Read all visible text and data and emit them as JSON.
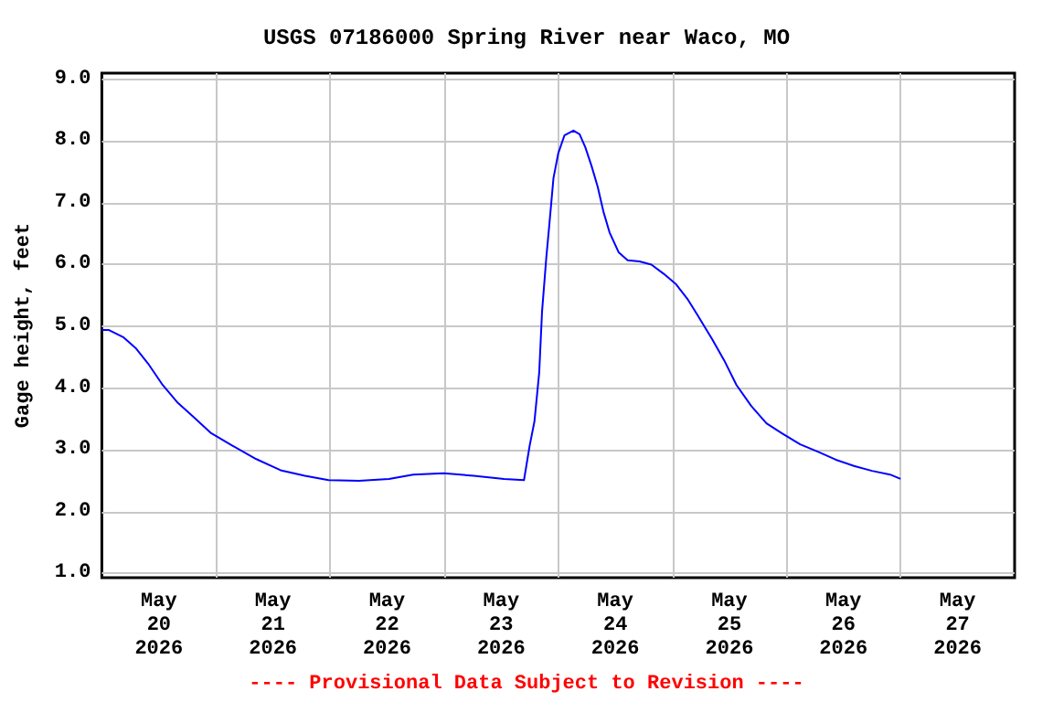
{
  "chart_data": {
    "type": "line",
    "title": "USGS 07186000 Spring River near Waco, MO",
    "ylabel": "Gage height, feet",
    "annotations": [
      "---- Provisional Data Subject to Revision ----"
    ],
    "x": [
      "2026-05-20T00:00",
      "2026-05-20T01:30",
      "2026-05-20T04:36",
      "2026-05-20T07:06",
      "2026-05-20T09:42",
      "2026-05-20T12:48",
      "2026-05-20T16:00",
      "2026-05-20T19:12",
      "2026-05-20T23:00",
      "2026-05-21T03:24",
      "2026-05-21T08:30",
      "2026-05-21T13:36",
      "2026-05-21T18:42",
      "2026-05-21T23:42",
      "2026-05-22T06:06",
      "2026-05-22T12:24",
      "2026-05-22T17:30",
      "2026-05-22T23:54",
      "2026-05-23T06:12",
      "2026-05-23T12:36",
      "2026-05-23T16:48",
      "2026-05-23T18:00",
      "2026-05-23T19:00",
      "2026-05-23T20:00",
      "2026-05-23T20:36",
      "2026-05-23T21:30",
      "2026-05-23T22:06",
      "2026-05-23T23:00",
      "2026-05-24T00:00",
      "2026-05-24T01:18",
      "2026-05-24T03:12",
      "2026-05-24T04:30",
      "2026-05-24T05:42",
      "2026-05-24T07:00",
      "2026-05-24T08:18",
      "2026-05-24T09:30",
      "2026-05-24T10:48",
      "2026-05-24T12:42",
      "2026-05-24T14:36",
      "2026-05-24T17:06",
      "2026-05-24T19:36",
      "2026-05-24T22:12",
      "2026-05-25T00:48",
      "2026-05-25T03:18",
      "2026-05-25T05:48",
      "2026-05-25T08:24",
      "2026-05-25T10:54",
      "2026-05-25T13:30",
      "2026-05-25T16:36",
      "2026-05-25T19:48",
      "2026-05-25T23:00",
      "2026-05-26T02:54",
      "2026-05-26T06:36",
      "2026-05-26T10:24",
      "2026-05-26T14:12",
      "2026-05-26T18:00",
      "2026-05-26T21:48",
      "2026-05-27T00:00"
    ],
    "series": [
      {
        "color": "#0000ff",
        "values": [
          4.94,
          4.94,
          4.82,
          4.65,
          4.4,
          4.05,
          3.76,
          3.54,
          3.27,
          3.07,
          2.85,
          2.67,
          2.58,
          2.51,
          2.5,
          2.53,
          2.6,
          2.62,
          2.58,
          2.53,
          2.51,
          3.07,
          3.46,
          4.25,
          5.24,
          6.12,
          6.62,
          7.4,
          7.8,
          8.09,
          8.17,
          8.11,
          7.9,
          7.6,
          7.26,
          6.86,
          6.52,
          6.2,
          6.07,
          6.05,
          6.0,
          5.85,
          5.68,
          5.43,
          5.12,
          4.79,
          4.45,
          4.05,
          3.71,
          3.43,
          3.27,
          3.09,
          2.97,
          2.84,
          2.74,
          2.66,
          2.6,
          2.53
        ]
      }
    ],
    "xlim": [
      "2026-05-20T00:00",
      "2026-05-28T00:00"
    ],
    "xticks": [
      {
        "value": "2026-05-20T12:00",
        "label": "May\n20\n2026"
      },
      {
        "value": "2026-05-21T00:00",
        "label": null
      },
      {
        "value": "2026-05-21T12:00",
        "label": "May\n21\n2026"
      },
      {
        "value": "2026-05-22T00:00",
        "label": null
      },
      {
        "value": "2026-05-22T12:00",
        "label": "May\n22\n2026"
      },
      {
        "value": "2026-05-23T00:00",
        "label": null
      },
      {
        "value": "2026-05-23T12:00",
        "label": "May\n23\n2026"
      },
      {
        "value": "2026-05-24T00:00",
        "label": null
      },
      {
        "value": "2026-05-24T12:00",
        "label": "May\n24\n2026"
      },
      {
        "value": "2026-05-25T00:00",
        "label": null
      },
      {
        "value": "2026-05-25T12:00",
        "label": "May\n25\n2026"
      },
      {
        "value": "2026-05-26T00:00",
        "label": null
      },
      {
        "value": "2026-05-26T12:00",
        "label": "May\n26\n2026"
      },
      {
        "value": "2026-05-27T00:00",
        "label": null
      },
      {
        "value": "2026-05-27T12:00",
        "label": "May\n27\n2026"
      }
    ],
    "ylim": [
      0.93,
      9.1
    ],
    "yticks": [
      {
        "value": 1,
        "label": "1.0"
      },
      {
        "value": 2,
        "label": "2.0"
      },
      {
        "value": 3,
        "label": "3.0"
      },
      {
        "value": 4,
        "label": "4.0"
      },
      {
        "value": 5,
        "label": "5.0"
      },
      {
        "value": 6,
        "label": "6.0"
      },
      {
        "value": 7,
        "label": "7.0"
      },
      {
        "value": 8,
        "label": "8.0"
      },
      {
        "value": 9,
        "label": "9.0"
      }
    ],
    "grid": true,
    "marker": "none",
    "line_style": "solid"
  }
}
